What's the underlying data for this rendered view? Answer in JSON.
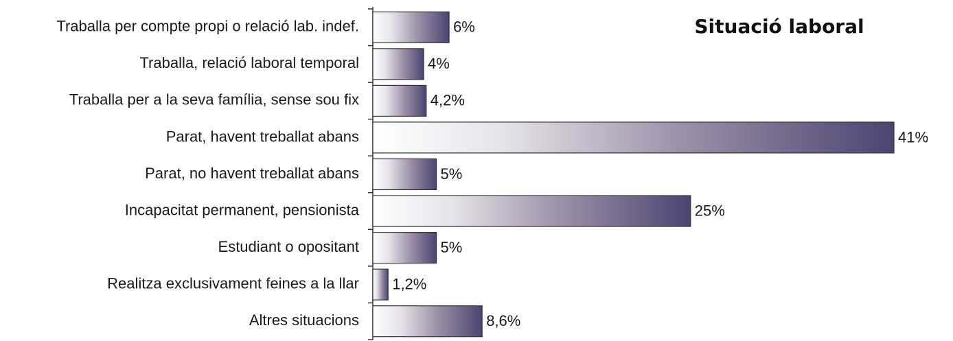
{
  "chart_data": {
    "type": "bar",
    "orientation": "horizontal",
    "title": "Situació laboral",
    "categories": [
      "Traballa per compte propi o relació lab. indef.",
      "Traballa, relació laboral temporal",
      "Traballa per a la seva família, sense sou fix",
      "Parat, havent treballat abans",
      "Parat, no havent treballat abans",
      "Incapacitat permanent, pensionista",
      "Estudiant o opositant",
      "Realitza exclusivament feines a la llar",
      "Altres situacions"
    ],
    "values": [
      6,
      4,
      4.2,
      41,
      5,
      25,
      5,
      1.2,
      8.6
    ],
    "value_labels": [
      "6%",
      "4%",
      "4,2%",
      "41%",
      "5%",
      "25%",
      "5%",
      "1,2%",
      "8,6%"
    ],
    "color": "#4b4472"
  }
}
